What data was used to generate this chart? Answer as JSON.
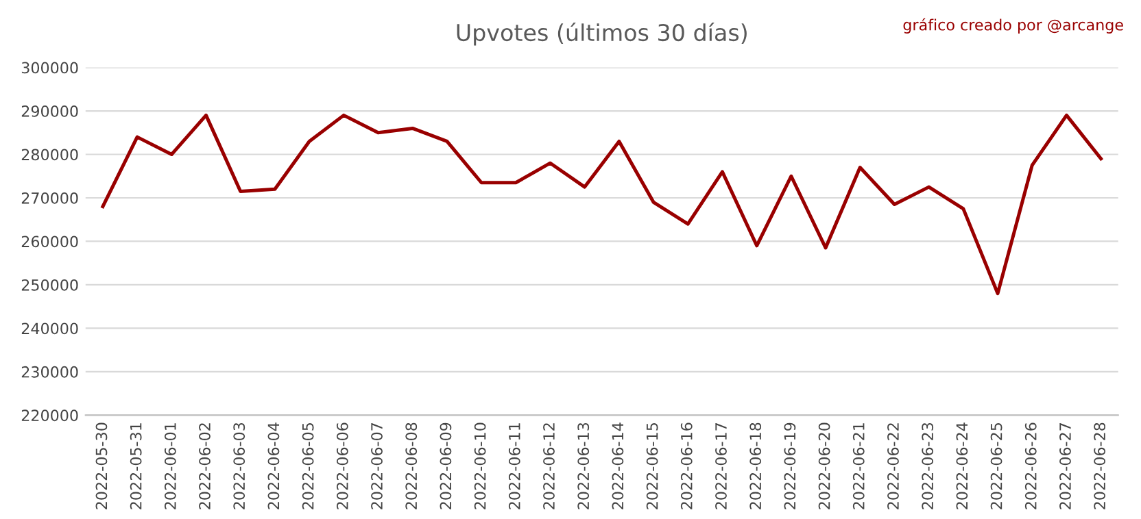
{
  "chart_data": {
    "type": "line",
    "title": "Upvotes (últimos 30 días)",
    "annotations": [
      "gráfico creado por @arcange"
    ],
    "categories": [
      "2022-05-30",
      "2022-05-31",
      "2022-06-01",
      "2022-06-02",
      "2022-06-03",
      "2022-06-04",
      "2022-06-05",
      "2022-06-06",
      "2022-06-07",
      "2022-06-08",
      "2022-06-09",
      "2022-06-10",
      "2022-06-11",
      "2022-06-12",
      "2022-06-13",
      "2022-06-14",
      "2022-06-15",
      "2022-06-16",
      "2022-06-17",
      "2022-06-18",
      "2022-06-19",
      "2022-06-20",
      "2022-06-21",
      "2022-06-22",
      "2022-06-23",
      "2022-06-24",
      "2022-06-25",
      "2022-06-26",
      "2022-06-27",
      "2022-06-28"
    ],
    "series": [
      {
        "color": "#990000",
        "values": [
          268000,
          284000,
          280000,
          289000,
          271500,
          272000,
          283000,
          289000,
          285000,
          286000,
          283000,
          273500,
          273500,
          278000,
          272500,
          283000,
          269000,
          264000,
          276000,
          259000,
          275000,
          258500,
          277000,
          268500,
          272500,
          267500,
          248000,
          277500,
          289000,
          279000
        ]
      }
    ],
    "ylim": [
      220000,
      300000
    ],
    "yticks": [
      220000,
      230000,
      240000,
      250000,
      260000,
      270000,
      280000,
      290000,
      300000
    ],
    "grid": "y",
    "legend": false,
    "marker": "none",
    "line_style": "solid"
  }
}
